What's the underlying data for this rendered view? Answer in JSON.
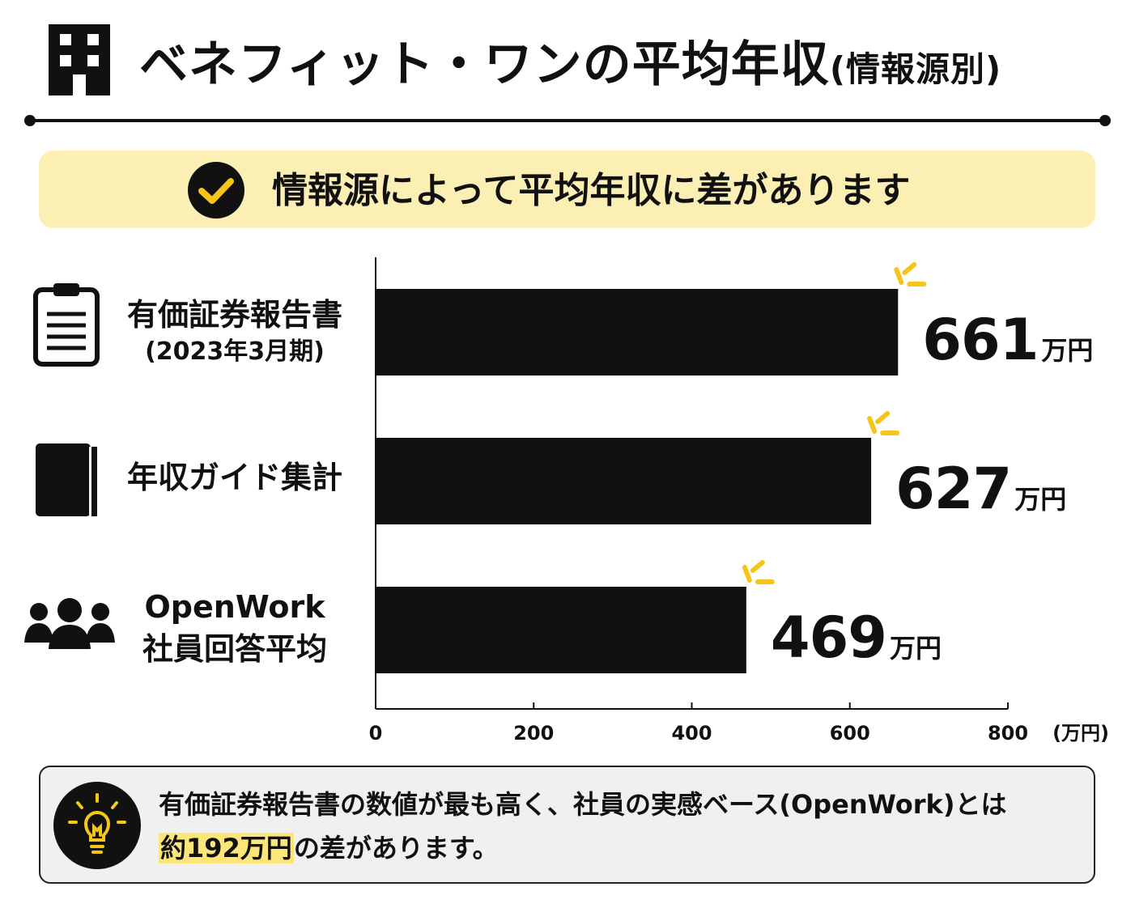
{
  "header": {
    "title": "ベネフィット・ワンの平均年収",
    "title_suffix": "(情報源別)"
  },
  "banner": {
    "text": "情報源によって平均年収に差があります"
  },
  "chart_data": {
    "type": "bar",
    "orientation": "horizontal",
    "categories": [
      {
        "line1": "有価証券報告書",
        "line2": "(2023年3月期)",
        "icon": "clipboard-icon"
      },
      {
        "line1": "年収ガイド集計",
        "line2": "",
        "icon": "book-icon"
      },
      {
        "line1": "OpenWork",
        "line2": "社員回答平均",
        "icon": "people-icon"
      }
    ],
    "values": [
      661,
      627,
      469
    ],
    "value_labels": [
      "661",
      "627",
      "469"
    ],
    "value_unit": "万円",
    "x_ticks": [
      "0",
      "200",
      "400",
      "600",
      "800"
    ],
    "x_tick_values": [
      0,
      200,
      400,
      600,
      800
    ],
    "x_unit": "(万円)",
    "xlim": [
      0,
      800
    ],
    "bar_color": "#111111",
    "accent_color": "#f5c518"
  },
  "footer": {
    "line1": "有価証券報告書の数値が最も高く、社員の実感ベース(OpenWork)とは",
    "highlight": "約192万円",
    "line2_rest": "の差があります。"
  },
  "colors": {
    "banner_bg": "#fcefb4",
    "highlight": "#fce67a",
    "footer_bg": "#f0f0f0"
  }
}
